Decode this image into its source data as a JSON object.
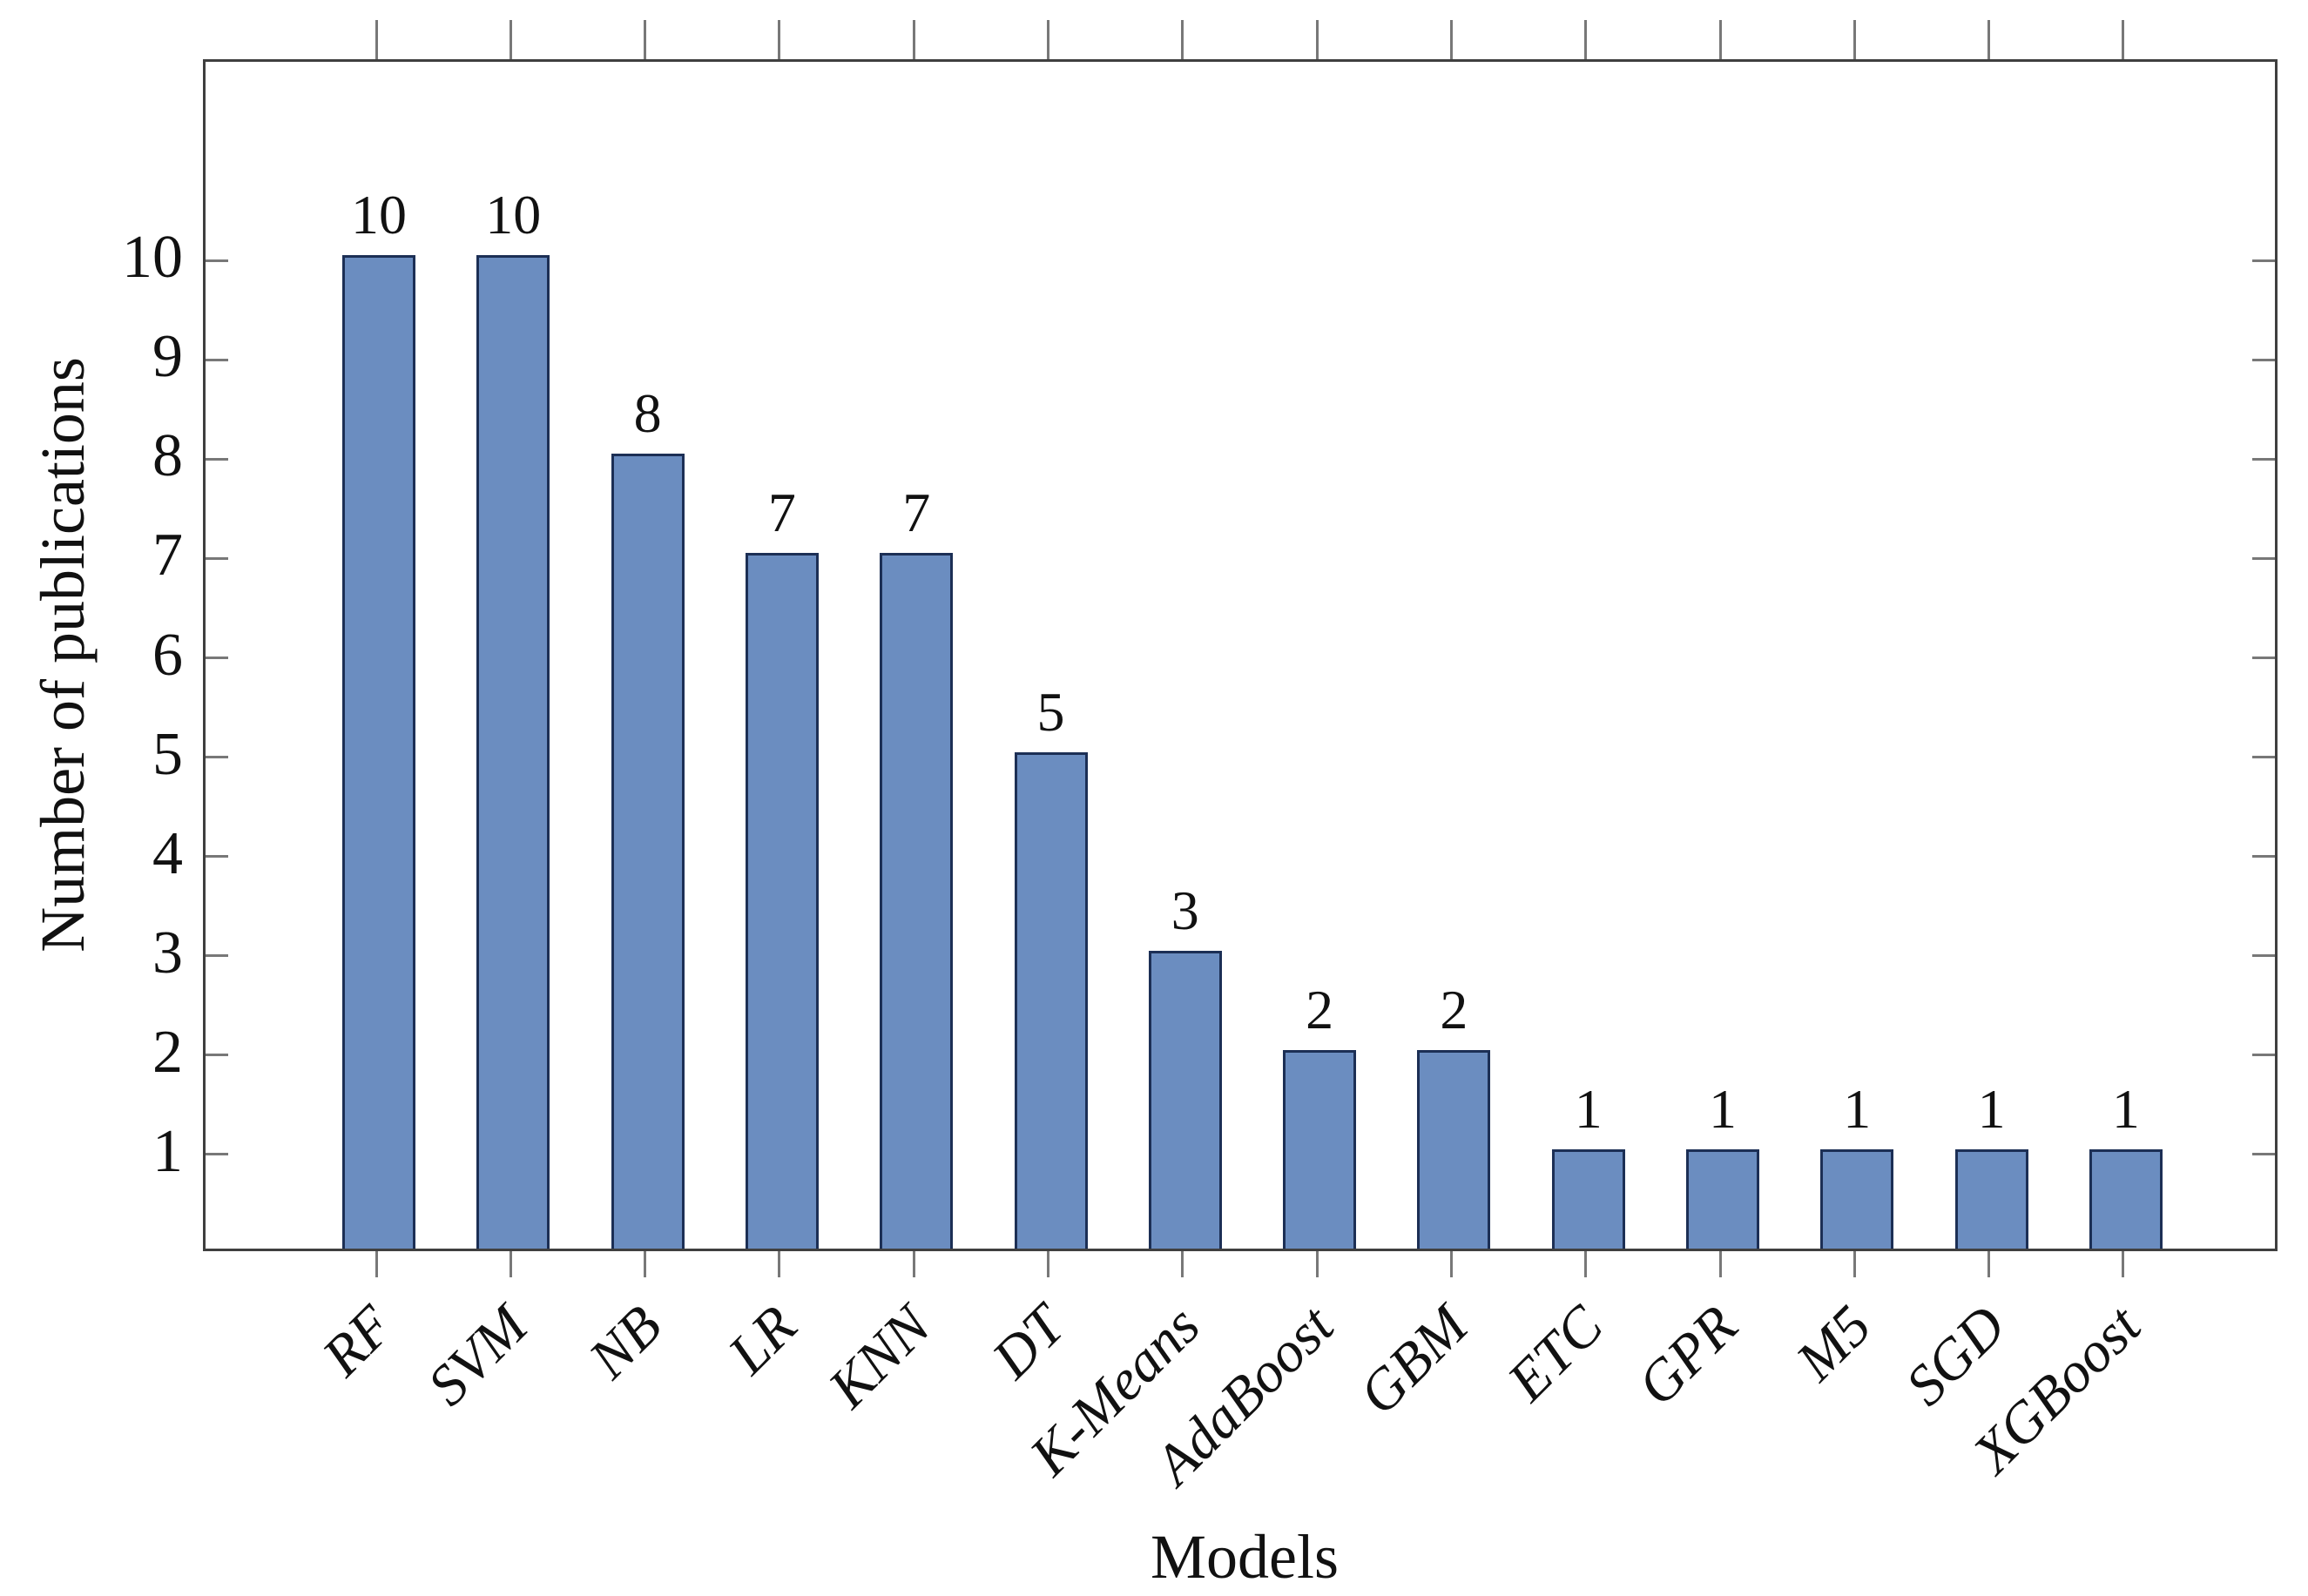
{
  "chart_data": {
    "type": "bar",
    "title": "",
    "xlabel": "Models",
    "ylabel": "Number of publications",
    "categories": [
      "RF",
      "SVM",
      "NB",
      "LR",
      "KNN",
      "DT",
      "K-Means",
      "AdaBoost",
      "GBM",
      "ETC",
      "GPR",
      "M5",
      "SGD",
      "XGBoost"
    ],
    "values": [
      10,
      10,
      8,
      7,
      7,
      5,
      3,
      2,
      2,
      1,
      1,
      1,
      1,
      1
    ],
    "bar_value_labels": [
      "10",
      "10",
      "8",
      "7",
      "7",
      "5",
      "3",
      "2",
      "2",
      "1",
      "1",
      "1",
      "1",
      "1"
    ],
    "ylim": [
      0,
      12
    ],
    "yticks": [
      1,
      2,
      3,
      4,
      5,
      6,
      7,
      8,
      9,
      10
    ],
    "grid": false,
    "legend_position": "none",
    "colors": {
      "bar_fill": "#6b8dc0",
      "bar_border": "#1c2f55",
      "axis_frame": "#3f3f3f",
      "tick": "#787878",
      "text": "#111111"
    }
  }
}
